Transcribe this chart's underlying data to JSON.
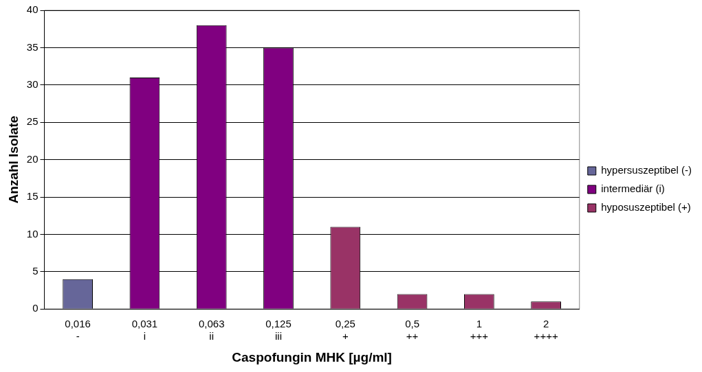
{
  "chart_data": {
    "type": "bar",
    "xlabel": "Caspofungin MHK [µg/ml]",
    "ylabel": "Anzahl Isolate",
    "categories": [
      "0,016\n-",
      "0,031\ni",
      "0,063\nii",
      "0,125\niii",
      "0,25\n+",
      "0,5\n++",
      "1\n+++",
      "2\n++++"
    ],
    "stacked": true,
    "series": [
      {
        "name": "hypersuszeptibel (-)",
        "color": "#666699",
        "values": [
          4,
          null,
          null,
          null,
          null,
          null,
          null,
          null
        ]
      },
      {
        "name": "intermediär (i)",
        "color": "#800080",
        "values": [
          null,
          31,
          38,
          35,
          null,
          null,
          null,
          null
        ]
      },
      {
        "name": "hyposuszeptibel (+)",
        "color": "#993366",
        "values": [
          null,
          null,
          null,
          null,
          11,
          2,
          2,
          1
        ]
      }
    ],
    "ylim": [
      0,
      40
    ],
    "yticks": [
      0,
      5,
      10,
      15,
      20,
      25,
      30,
      35,
      40
    ],
    "grid": "y",
    "legend": "right"
  }
}
